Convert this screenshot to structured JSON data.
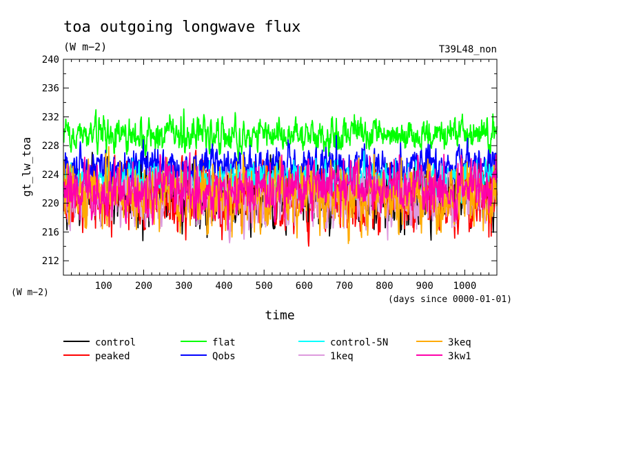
{
  "chart_data": {
    "type": "line",
    "title": "toa outgoing longwave flux",
    "units_label": "(W m−2)",
    "units_label_left": "(W m−2)",
    "experiment_label": "T39L48_non",
    "ylabel": "gt_lw_toa",
    "xlabel": "time",
    "x_units_label": "(days since 0000-01-01)",
    "xlim": [
      0,
      1080
    ],
    "ylim": [
      210,
      240
    ],
    "x_ticks": [
      100,
      200,
      300,
      400,
      500,
      600,
      700,
      800,
      900,
      1000
    ],
    "y_ticks": [
      212,
      216,
      220,
      224,
      228,
      232,
      236,
      240
    ],
    "legend_position": "bottom",
    "series": [
      {
        "name": "control",
        "color": "#000000",
        "mean": 221.0,
        "noise": 2.2,
        "seed": 11,
        "extremes": [
          [
            330,
            216.8
          ],
          [
            1015,
            216.5
          ],
          [
            860,
            217.0
          ]
        ]
      },
      {
        "name": "peaked",
        "color": "#ff0000",
        "mean": 220.6,
        "noise": 2.3,
        "seed": 23,
        "extremes": [
          [
            120,
            215.3
          ],
          [
            305,
            214.9
          ],
          [
            1060,
            215.3
          ]
        ]
      },
      {
        "name": "flat",
        "color": "#00ff00",
        "mean": 229.6,
        "noise": 1.2,
        "seed": 37,
        "extremes": [
          [
            300,
            233.1
          ],
          [
            1070,
            232.4
          ],
          [
            680,
            231.8
          ]
        ]
      },
      {
        "name": "Qobs",
        "color": "#0000ff",
        "mean": 225.2,
        "noise": 1.3,
        "seed": 41,
        "extremes": [
          [
            680,
            229.4
          ],
          [
            560,
            228.8
          ],
          [
            840,
            228.4
          ]
        ]
      },
      {
        "name": "control-5N",
        "color": "#00ffff",
        "mean": 223.2,
        "noise": 1.2,
        "seed": 53,
        "extremes": [
          [
            1030,
            226.0
          ]
        ]
      },
      {
        "name": "1keq",
        "color": "#dd99dd",
        "mean": 220.7,
        "noise": 2.0,
        "seed": 67,
        "extremes": [
          [
            880,
            216.4
          ],
          [
            470,
            216.6
          ]
        ]
      },
      {
        "name": "3keq",
        "color": "#ffaa00",
        "mean": 221.0,
        "noise": 2.3,
        "seed": 79,
        "extremes": [
          [
            420,
            215.3
          ],
          [
            930,
            215.7
          ]
        ]
      },
      {
        "name": "3kw1",
        "color": "#ff00aa",
        "mean": 222.0,
        "noise": 1.9,
        "seed": 83,
        "extremes": [
          [
            1040,
            226.2
          ],
          [
            210,
            218.0
          ]
        ]
      }
    ]
  }
}
